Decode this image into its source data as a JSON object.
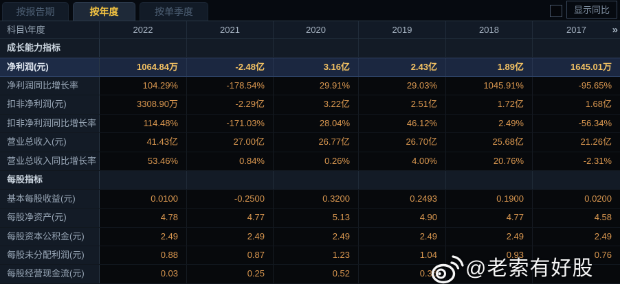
{
  "tabs": [
    {
      "label": "按报告期",
      "active": false
    },
    {
      "label": "按年度",
      "active": true
    },
    {
      "label": "按单季度",
      "active": false
    }
  ],
  "controls": {
    "compare_label": "显示同比",
    "checkbox_checked": false
  },
  "table": {
    "corner_header": "科目\\年度",
    "years": [
      "2022",
      "2021",
      "2020",
      "2019",
      "2018",
      "2017"
    ],
    "more_icon": "»",
    "rows": [
      {
        "type": "section",
        "label": "成长能力指标"
      },
      {
        "type": "data",
        "highlight": true,
        "label": "净利润(元)",
        "values": [
          "1064.84万",
          "-2.48亿",
          "3.16亿",
          "2.43亿",
          "1.89亿",
          "1645.01万"
        ]
      },
      {
        "type": "data",
        "highlight": false,
        "label": "净利润同比增长率",
        "values": [
          "104.29%",
          "-178.54%",
          "29.91%",
          "29.03%",
          "1045.91%",
          "-95.65%"
        ]
      },
      {
        "type": "data",
        "highlight": false,
        "label": "扣非净利润(元)",
        "values": [
          "3308.90万",
          "-2.29亿",
          "3.22亿",
          "2.51亿",
          "1.72亿",
          "1.68亿"
        ]
      },
      {
        "type": "data",
        "highlight": false,
        "label": "扣非净利润同比增长率",
        "values": [
          "114.48%",
          "-171.03%",
          "28.04%",
          "46.12%",
          "2.49%",
          "-56.34%"
        ]
      },
      {
        "type": "data",
        "highlight": false,
        "label": "营业总收入(元)",
        "values": [
          "41.43亿",
          "27.00亿",
          "26.77亿",
          "26.70亿",
          "25.68亿",
          "21.26亿"
        ]
      },
      {
        "type": "data",
        "highlight": false,
        "label": "营业总收入同比增长率",
        "values": [
          "53.46%",
          "0.84%",
          "0.26%",
          "4.00%",
          "20.76%",
          "-2.31%"
        ]
      },
      {
        "type": "section",
        "label": "每股指标"
      },
      {
        "type": "data",
        "highlight": false,
        "label": "基本每股收益(元)",
        "values": [
          "0.0100",
          "-0.2500",
          "0.3200",
          "0.2493",
          "0.1900",
          "0.0200"
        ]
      },
      {
        "type": "data",
        "highlight": false,
        "label": "每股净资产(元)",
        "values": [
          "4.78",
          "4.77",
          "5.13",
          "4.90",
          "4.77",
          "4.58"
        ]
      },
      {
        "type": "data",
        "highlight": false,
        "label": "每股资本公积金(元)",
        "values": [
          "2.49",
          "2.49",
          "2.49",
          "2.49",
          "2.49",
          "2.49"
        ]
      },
      {
        "type": "data",
        "highlight": false,
        "label": "每股未分配利润(元)",
        "values": [
          "0.88",
          "0.87",
          "1.23",
          "1.04",
          "0.93",
          "0.76"
        ]
      },
      {
        "type": "data",
        "highlight": false,
        "label": "每股经营现金流(元)",
        "values": [
          "0.03",
          "0.25",
          "0.52",
          "0.36",
          "",
          ""
        ]
      }
    ]
  },
  "watermark": {
    "text": "@老索有好股"
  },
  "colors": {
    "accent_tab": "#f6c542",
    "value_orange": "#db9850",
    "highlight_value": "#f3c263",
    "highlight_row_bg": "#1b2740",
    "panel_bg": "#131b26",
    "cell_bg": "#07090c"
  }
}
